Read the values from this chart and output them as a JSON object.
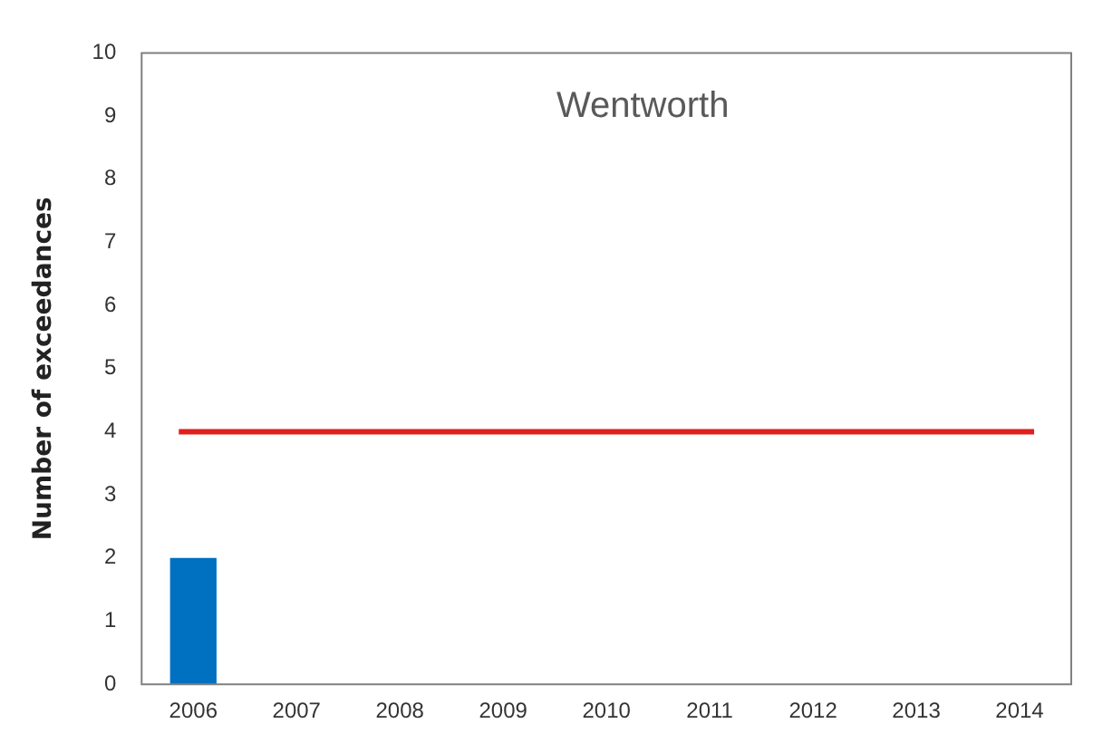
{
  "chart_data": {
    "type": "bar",
    "title": "Wentworth",
    "ylabel": "Number of exceedances",
    "categories": [
      "2006",
      "2007",
      "2008",
      "2009",
      "2010",
      "2011",
      "2012",
      "2013",
      "2014"
    ],
    "values": [
      2,
      0,
      0,
      0,
      0,
      0,
      0,
      0,
      0
    ],
    "color": "#0070c0",
    "ylim": [
      0,
      10
    ],
    "yticks": [
      0,
      1,
      2,
      3,
      4,
      5,
      6,
      7,
      8,
      9,
      10
    ],
    "grid": false,
    "legend": false,
    "ref_lines": [
      {
        "axis": "y",
        "value": 4,
        "color": "#e0201c"
      }
    ]
  }
}
